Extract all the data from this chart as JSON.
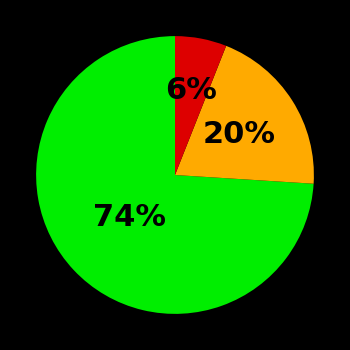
{
  "slices": [
    74,
    20,
    6
  ],
  "labels": [
    "74%",
    "20%",
    "6%"
  ],
  "colors": [
    "#00ee00",
    "#ffaa00",
    "#dd0000"
  ],
  "background_color": "#000000",
  "startangle": 90,
  "text_fontsize": 22,
  "text_fontweight": "bold",
  "label_radii": [
    0.45,
    0.55,
    0.62
  ]
}
